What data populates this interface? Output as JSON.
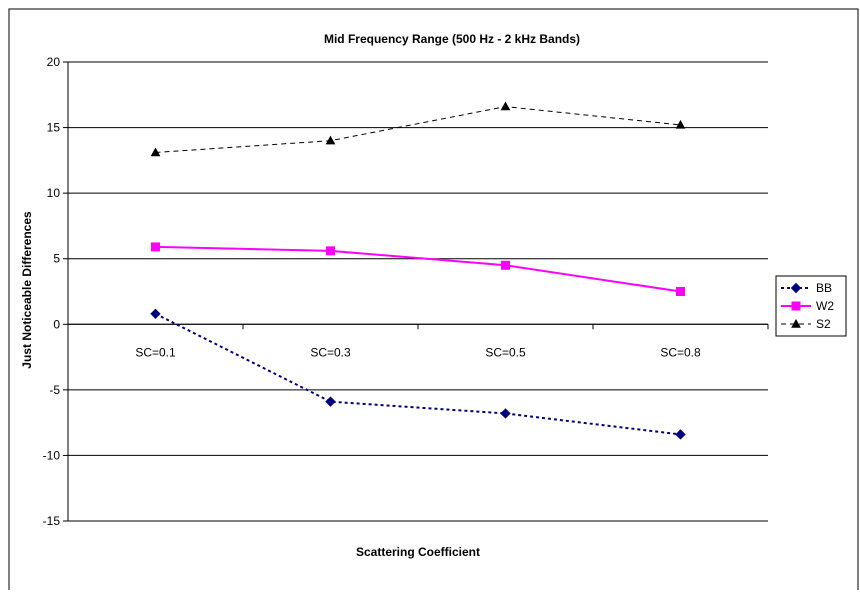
{
  "chart_data": {
    "type": "line",
    "title": "Mid Frequency Range (500 Hz - 2 kHz Bands)",
    "xlabel": "Scattering Coefficient",
    "ylabel": "Just Noticeable Differences",
    "categories": [
      "SC=0.1",
      "SC=0.3",
      "SC=0.5",
      "SC=0.8"
    ],
    "ylim": [
      -15,
      20
    ],
    "yticks": [
      -15,
      -10,
      -5,
      0,
      5,
      10,
      15,
      20
    ],
    "grid": true,
    "legend_position": "right",
    "series": [
      {
        "name": "BB",
        "values": [
          0.8,
          -5.9,
          -6.8,
          -8.4
        ],
        "color": "#000080",
        "marker": "diamond",
        "dash": "dotted",
        "line_width": 2
      },
      {
        "name": "W2",
        "values": [
          5.9,
          5.6,
          4.5,
          2.5
        ],
        "color": "#FF00FF",
        "marker": "square",
        "dash": "solid",
        "line_width": 2
      },
      {
        "name": "S2",
        "values": [
          13.1,
          14.0,
          16.6,
          15.2
        ],
        "color": "#000000",
        "marker": "triangle",
        "dash": "dashed",
        "line_width": 1
      }
    ]
  }
}
